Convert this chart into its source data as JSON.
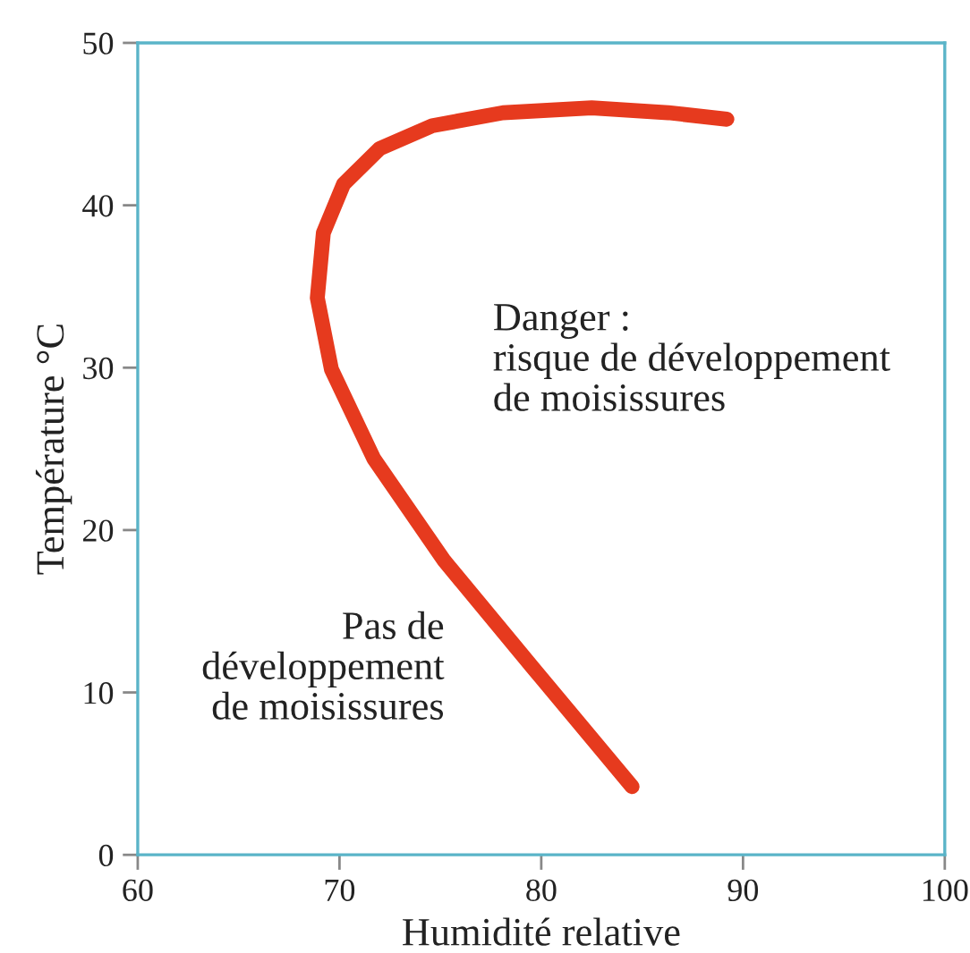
{
  "chart_data": {
    "type": "line",
    "xlabel": "Humidité relative",
    "ylabel": "Température °C",
    "series": [
      {
        "color": "#e63a1e",
        "x": [
          84.5,
          79.6,
          75.2,
          71.7,
          69.6,
          68.9,
          69.2,
          70.2,
          72.0,
          74.6,
          78.1,
          82.5,
          86.3,
          89.2
        ],
        "values": [
          4.2,
          11.5,
          18.1,
          24.4,
          29.9,
          34.3,
          38.3,
          41.3,
          43.5,
          44.9,
          45.7,
          46.0,
          45.7,
          45.3
        ]
      }
    ],
    "xlim": [
      60,
      100
    ],
    "ylim": [
      0,
      50
    ],
    "xticks": [
      60,
      70,
      80,
      90,
      100
    ],
    "yticks": [
      0,
      10,
      20,
      30,
      40,
      50
    ],
    "annotations": [
      "Danger :\nrisque de développement\nde moisissures",
      "Pas de\ndéveloppement\nde moisissures"
    ],
    "grid": false,
    "legend": false,
    "marker": "none",
    "line_style": "solid"
  }
}
